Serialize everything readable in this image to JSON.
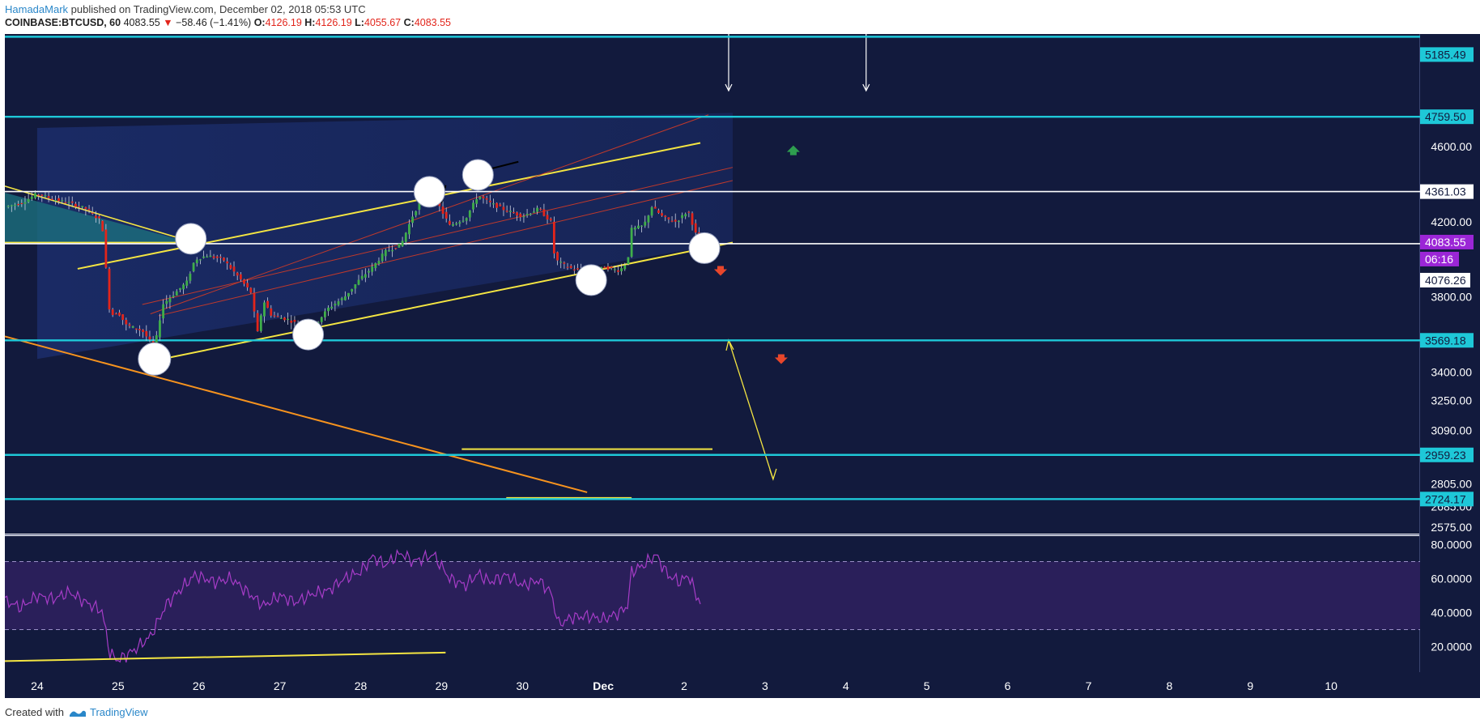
{
  "header": {
    "author": "HamadaMark",
    "published_text": "published on TradingView.com, December 02, 2018 05:53 UTC",
    "symbol": "COINBASE:BTCUSD, 60",
    "last": "4083.55",
    "change": "−58.46 (−1.41%)",
    "open_label": "O:",
    "open": "4126.19",
    "high_label": "H:",
    "high": "4126.19",
    "low_label": "L:",
    "low": "4055.67",
    "close_label": "C:",
    "close": "4083.55"
  },
  "footer": {
    "created_with": "Created with",
    "brand": "TradingView"
  },
  "colors": {
    "background": "#121a3d",
    "cyan_level": "#1ec8d8",
    "white_level": "#ffffff",
    "yellow": "#f4e542",
    "orange": "#f7931e",
    "red_channel": "#c0392b",
    "rsi_line": "#a63cc7",
    "rsi_band": "#2a1f5a",
    "price_tag": "#9b26d6",
    "up_arrow": "#2e9e4f",
    "down_arrow": "#e8462b"
  },
  "chart_data": {
    "type": "candlestick",
    "symbol": "COINBASE:BTCUSD",
    "interval": "60",
    "x_labels": [
      "24",
      "25",
      "26",
      "27",
      "28",
      "29",
      "30",
      "Dec",
      "2",
      "3",
      "4",
      "5",
      "6",
      "7",
      "8",
      "9",
      "10"
    ],
    "x_range": [
      23.6,
      41.1
    ],
    "y_range": [
      2540,
      5200
    ],
    "y_ticks": [
      "4600.00",
      "4200.00",
      "3800.00",
      "3400.00",
      "3250.00",
      "3090.00",
      "2805.00",
      "2685.00",
      "2575.00"
    ],
    "horizontal_levels": [
      {
        "value": "5185.49",
        "color": "cyan"
      },
      {
        "value": "4759.50",
        "color": "cyan"
      },
      {
        "value": "4361.03",
        "color": "white"
      },
      {
        "value": "3569.18",
        "color": "cyan"
      },
      {
        "value": "2959.23",
        "color": "cyan"
      },
      {
        "value": "2724.17",
        "color": "cyan"
      }
    ],
    "current_price": "4083.55",
    "countdown": "06:16",
    "secondary_price": "4076.26",
    "price_path": [
      [
        23.6,
        4280
      ],
      [
        23.8,
        4300
      ],
      [
        24.0,
        4350
      ],
      [
        24.2,
        4320
      ],
      [
        24.4,
        4300
      ],
      [
        24.6,
        4270
      ],
      [
        24.8,
        4200
      ],
      [
        24.85,
        3950
      ],
      [
        24.9,
        3700
      ],
      [
        25.0,
        3720
      ],
      [
        25.1,
        3650
      ],
      [
        25.3,
        3620
      ],
      [
        25.45,
        3530
      ],
      [
        25.55,
        3760
      ],
      [
        25.7,
        3820
      ],
      [
        25.85,
        3880
      ],
      [
        25.95,
        4000
      ],
      [
        26.1,
        4020
      ],
      [
        26.3,
        4000
      ],
      [
        26.5,
        3900
      ],
      [
        26.65,
        3820
      ],
      [
        26.72,
        3600
      ],
      [
        26.8,
        3780
      ],
      [
        26.9,
        3700
      ],
      [
        27.1,
        3680
      ],
      [
        27.3,
        3640
      ],
      [
        27.45,
        3660
      ],
      [
        27.6,
        3740
      ],
      [
        27.8,
        3800
      ],
      [
        28.0,
        3900
      ],
      [
        28.15,
        3960
      ],
      [
        28.3,
        4040
      ],
      [
        28.5,
        4080
      ],
      [
        28.65,
        4240
      ],
      [
        28.8,
        4350
      ],
      [
        28.95,
        4300
      ],
      [
        29.1,
        4180
      ],
      [
        29.3,
        4220
      ],
      [
        29.45,
        4340
      ],
      [
        29.6,
        4300
      ],
      [
        29.8,
        4260
      ],
      [
        30.0,
        4230
      ],
      [
        30.2,
        4270
      ],
      [
        30.35,
        4200
      ],
      [
        30.4,
        4000
      ],
      [
        30.55,
        3960
      ],
      [
        30.7,
        3940
      ],
      [
        30.85,
        3910
      ],
      [
        31.0,
        3960
      ],
      [
        31.2,
        3940
      ],
      [
        31.3,
        3990
      ],
      [
        31.35,
        4160
      ],
      [
        31.5,
        4180
      ],
      [
        31.6,
        4280
      ],
      [
        31.75,
        4220
      ],
      [
        31.9,
        4200
      ],
      [
        32.05,
        4260
      ],
      [
        32.15,
        4126
      ],
      [
        32.2,
        4083
      ]
    ],
    "rsi": {
      "y_range": [
        5,
        85
      ],
      "y_ticks": [
        "80.0000",
        "60.0000",
        "40.0000",
        "20.0000"
      ],
      "overbought": 70,
      "oversold": 30,
      "values": [
        [
          23.6,
          47
        ],
        [
          23.8,
          43
        ],
        [
          24.0,
          50
        ],
        [
          24.2,
          48
        ],
        [
          24.4,
          52
        ],
        [
          24.6,
          46
        ],
        [
          24.8,
          41
        ],
        [
          24.9,
          16
        ],
        [
          25.0,
          12
        ],
        [
          25.2,
          18
        ],
        [
          25.4,
          26
        ],
        [
          25.6,
          45
        ],
        [
          25.8,
          55
        ],
        [
          25.95,
          62
        ],
        [
          26.2,
          58
        ],
        [
          26.4,
          60
        ],
        [
          26.6,
          52
        ],
        [
          26.8,
          44
        ],
        [
          27.0,
          50
        ],
        [
          27.2,
          46
        ],
        [
          27.4,
          51
        ],
        [
          27.6,
          53
        ],
        [
          27.8,
          60
        ],
        [
          28.0,
          64
        ],
        [
          28.15,
          73
        ],
        [
          28.3,
          68
        ],
        [
          28.5,
          75
        ],
        [
          28.65,
          70
        ],
        [
          28.9,
          74
        ],
        [
          29.1,
          60
        ],
        [
          29.3,
          56
        ],
        [
          29.45,
          63
        ],
        [
          29.6,
          58
        ],
        [
          29.8,
          62
        ],
        [
          30.0,
          56
        ],
        [
          30.2,
          59
        ],
        [
          30.35,
          52
        ],
        [
          30.45,
          33
        ],
        [
          30.6,
          37
        ],
        [
          30.8,
          38
        ],
        [
          31.0,
          36
        ],
        [
          31.2,
          40
        ],
        [
          31.3,
          44
        ],
        [
          31.35,
          64
        ],
        [
          31.5,
          68
        ],
        [
          31.65,
          74
        ],
        [
          31.8,
          62
        ],
        [
          31.95,
          58
        ],
        [
          32.05,
          62
        ],
        [
          32.2,
          45
        ]
      ]
    }
  }
}
